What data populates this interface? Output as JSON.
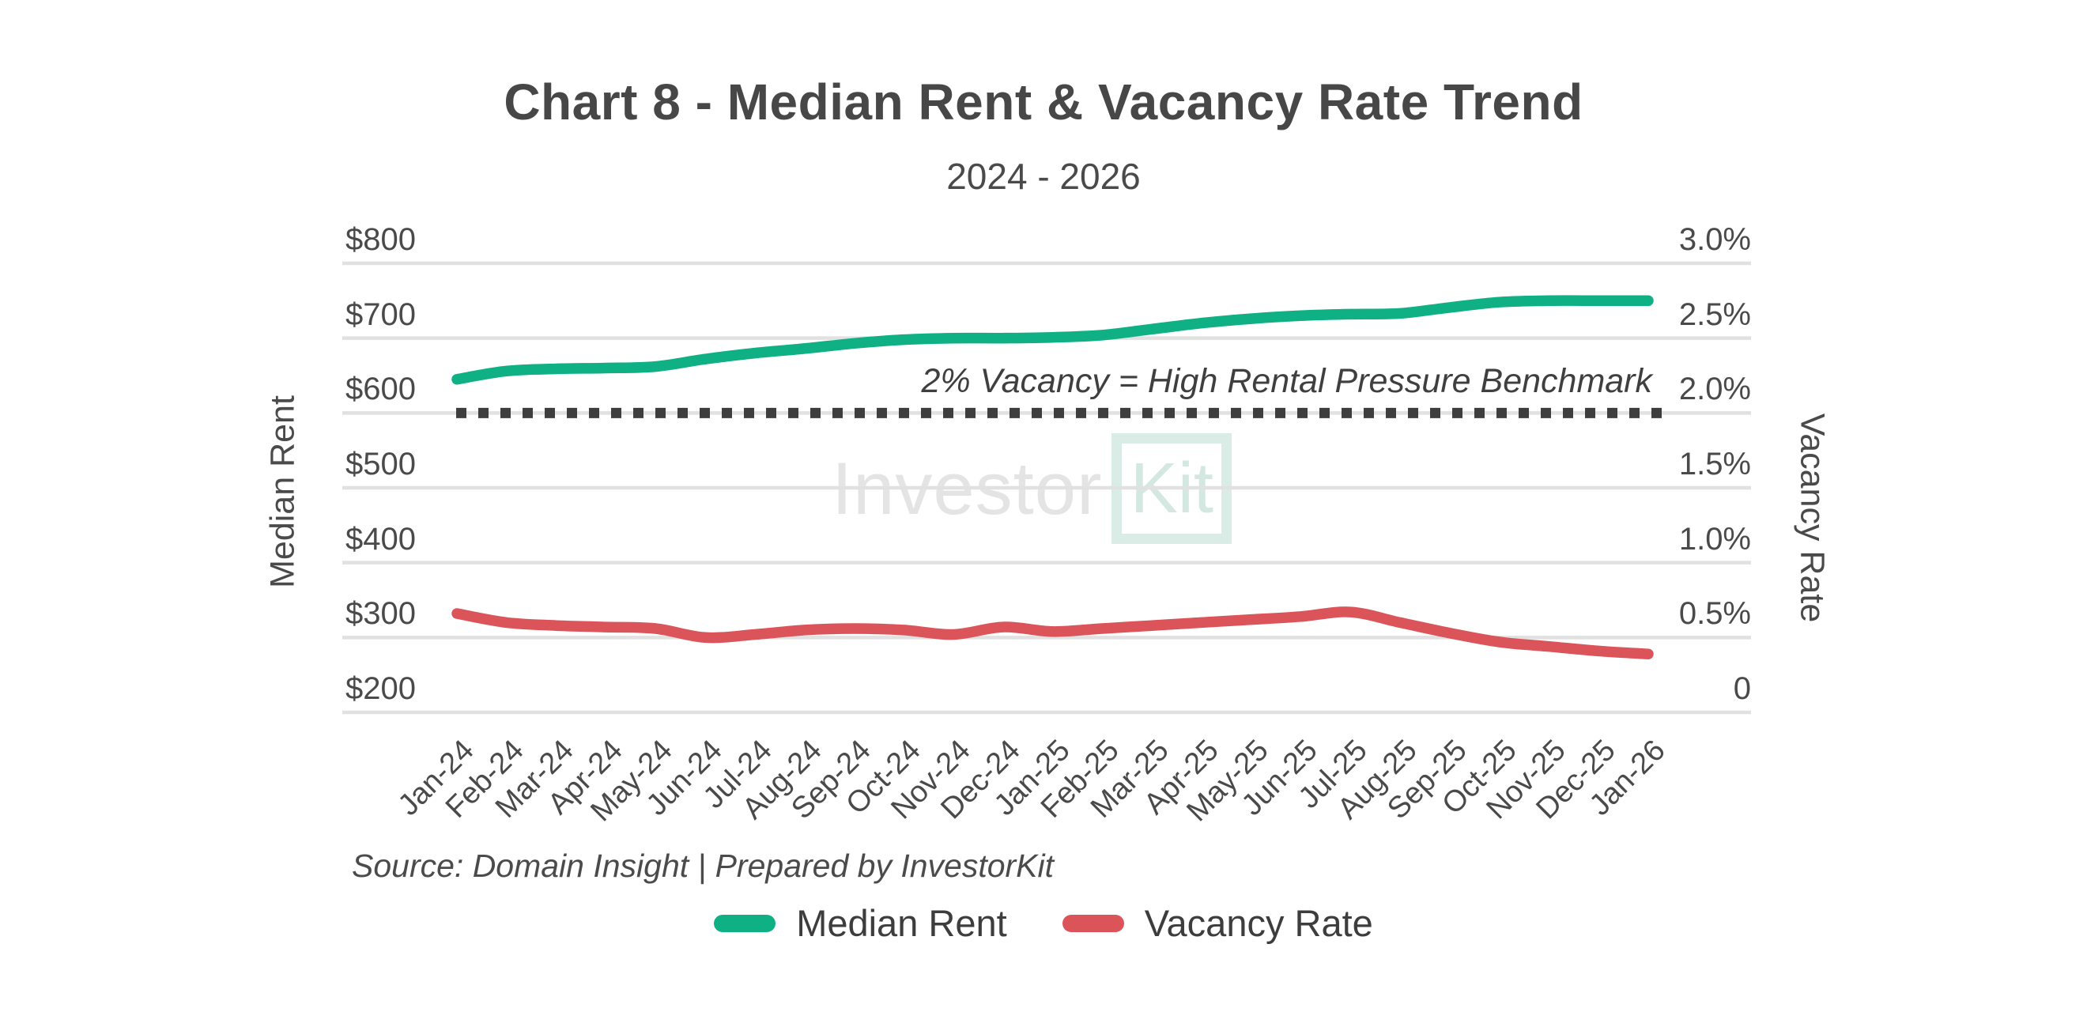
{
  "title": "Chart 8 - Median Rent & Vacancy Rate Trend",
  "subtitle": "2024 - 2026",
  "left_axis": {
    "title": "Median Rent",
    "ticks": [
      "$800",
      "$700",
      "$600",
      "$500",
      "$400",
      "$300",
      "$200"
    ]
  },
  "right_axis": {
    "title": "Vacancy Rate",
    "ticks": [
      "3.0%",
      "2.5%",
      "2.0%",
      "1.5%",
      "1.0%",
      "0.5%",
      "0"
    ]
  },
  "benchmark": {
    "label": "2% Vacancy = High Rental Pressure Benchmark",
    "value_pct": 2.0,
    "line_color": "#3e3e3e"
  },
  "source": "Source: Domain Insight | Prepared by InvestorKit",
  "watermark": {
    "part1": "Investor",
    "part2": "Kit"
  },
  "legend": [
    {
      "label": "Median Rent",
      "color": "#10B085"
    },
    {
      "label": "Vacancy Rate",
      "color": "#DA545A"
    }
  ],
  "colors": {
    "grid": "#e1e1e1",
    "median_rent_line": "#10B085",
    "vacancy_rate_line": "#DA545A",
    "benchmark_dotted": "#3e3e3e"
  },
  "chart_data": {
    "type": "line",
    "title": "Chart 8 - Median Rent & Vacancy Rate Trend",
    "subtitle": "2024 - 2026",
    "categories": [
      "Jan-24",
      "Feb-24",
      "Mar-24",
      "Apr-24",
      "May-24",
      "Jun-24",
      "Jul-24",
      "Aug-24",
      "Sep-24",
      "Oct-24",
      "Nov-24",
      "Dec-24",
      "Jan-25",
      "Feb-25",
      "Mar-25",
      "Apr-25",
      "May-25",
      "Jun-25",
      "Jul-25",
      "Aug-25",
      "Sep-25",
      "Oct-25",
      "Nov-25",
      "Dec-25",
      "Jan-26"
    ],
    "series": [
      {
        "name": "Median Rent",
        "axis": "left",
        "color": "#10B085",
        "values": [
          645,
          656,
          659,
          660,
          662,
          672,
          680,
          686,
          693,
          698,
          700,
          700,
          701,
          704,
          712,
          720,
          726,
          730,
          732,
          733,
          741,
          748,
          750,
          750,
          750
        ]
      },
      {
        "name": "Vacancy Rate",
        "axis": "right",
        "color": "#DA545A",
        "values": [
          0.66,
          0.6,
          0.58,
          0.57,
          0.56,
          0.5,
          0.52,
          0.55,
          0.56,
          0.55,
          0.52,
          0.57,
          0.54,
          0.56,
          0.58,
          0.6,
          0.62,
          0.64,
          0.67,
          0.6,
          0.53,
          0.47,
          0.44,
          0.41,
          0.39
        ]
      }
    ],
    "left_ylabel": "Median Rent",
    "right_ylabel": "Vacancy Rate",
    "left_ylim": [
      200,
      800
    ],
    "right_ylim": [
      0,
      3.0
    ],
    "grid": true,
    "legend_position": "bottom",
    "annotations": [
      {
        "text": "2% Vacancy = High Rental Pressure Benchmark",
        "type": "dotted-benchmark-line",
        "right_axis_value": 2.0
      }
    ]
  }
}
